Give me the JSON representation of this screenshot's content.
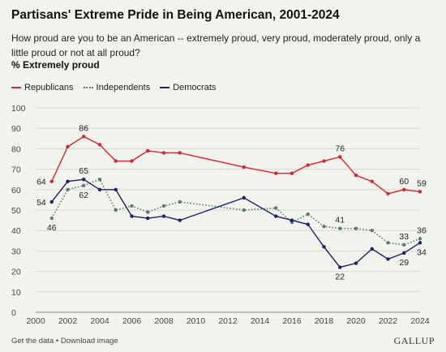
{
  "header": {
    "title": "Partisans' Extreme Pride in Being American, 2001-2024",
    "subtitle": "How proud are you to be an American -- extremely proud, very proud, moderately proud, only a little proud or not at all proud?",
    "measure": "% Extremely proud"
  },
  "footer": {
    "get_data": "Get the data",
    "separator": " • ",
    "download": "Download image",
    "brand": "GALLUP"
  },
  "chart_data": {
    "type": "line",
    "xlim": [
      2000,
      2024
    ],
    "ylim": [
      0,
      100
    ],
    "x_ticks": [
      2000,
      2002,
      2004,
      2006,
      2008,
      2010,
      2012,
      2014,
      2016,
      2018,
      2020,
      2022,
      2024
    ],
    "y_ticks": [
      0,
      10,
      20,
      30,
      40,
      50,
      60,
      70,
      80,
      90,
      100
    ],
    "grid": "horizontal",
    "legend_position": "top-left",
    "series": [
      {
        "name": "Republicans",
        "color": "#d22630",
        "style": "solid",
        "x": [
          2001,
          2002,
          2003,
          2004,
          2005,
          2006,
          2007,
          2008,
          2009,
          2013,
          2015,
          2016,
          2017,
          2018,
          2019,
          2020,
          2021,
          2022,
          2023,
          2024
        ],
        "y": [
          64,
          81,
          86,
          82,
          74,
          74,
          79,
          78,
          78,
          71,
          68,
          68,
          72,
          74,
          76,
          67,
          64,
          58,
          60,
          59
        ],
        "labels": [
          {
            "x": 2001,
            "text": "64",
            "pos": "left"
          },
          {
            "x": 2003,
            "text": "86",
            "pos": "above"
          },
          {
            "x": 2019,
            "text": "76",
            "pos": "above"
          },
          {
            "x": 2023,
            "text": "60",
            "pos": "above"
          },
          {
            "x": 2024,
            "text": "59",
            "pos": "above"
          }
        ]
      },
      {
        "name": "Independents",
        "color": "#5b7b73",
        "style": "dotted",
        "x": [
          2001,
          2002,
          2003,
          2004,
          2005,
          2006,
          2007,
          2008,
          2009,
          2013,
          2015,
          2016,
          2017,
          2018,
          2019,
          2020,
          2021,
          2022,
          2023,
          2024
        ],
        "y": [
          46,
          60,
          62,
          65,
          50,
          52,
          49,
          52,
          54,
          50,
          51,
          44,
          48,
          42,
          41,
          41,
          40,
          34,
          33,
          36
        ],
        "labels": [
          {
            "x": 2001,
            "text": "46",
            "pos": "below"
          },
          {
            "x": 2003,
            "text": "62",
            "pos": "below"
          },
          {
            "x": 2019,
            "text": "41",
            "pos": "above"
          },
          {
            "x": 2023,
            "text": "33",
            "pos": "above"
          },
          {
            "x": 2024,
            "text": "36",
            "pos": "above"
          }
        ]
      },
      {
        "name": "Democrats",
        "color": "#1c2163",
        "style": "solid",
        "x": [
          2001,
          2002,
          2003,
          2004,
          2005,
          2006,
          2007,
          2008,
          2009,
          2013,
          2015,
          2016,
          2017,
          2018,
          2019,
          2020,
          2021,
          2022,
          2023,
          2024
        ],
        "y": [
          54,
          64,
          65,
          60,
          60,
          47,
          46,
          47,
          45,
          56,
          47,
          45,
          43,
          32,
          22,
          24,
          31,
          26,
          29,
          34
        ],
        "labels": [
          {
            "x": 2001,
            "text": "54",
            "pos": "left"
          },
          {
            "x": 2003,
            "text": "65",
            "pos": "above"
          },
          {
            "x": 2019,
            "text": "22",
            "pos": "below"
          },
          {
            "x": 2023,
            "text": "29",
            "pos": "below"
          },
          {
            "x": 2024,
            "text": "34",
            "pos": "below"
          }
        ]
      }
    ]
  }
}
